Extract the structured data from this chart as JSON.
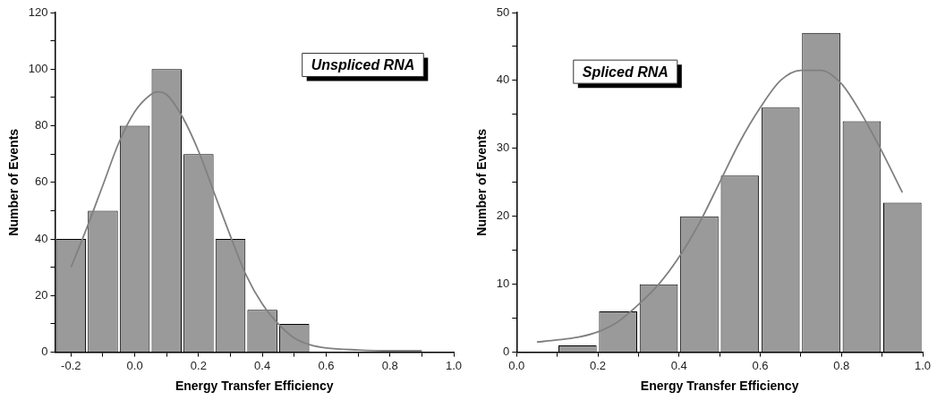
{
  "chart_data": [
    {
      "type": "histogram",
      "xlabel": "Energy Transfer Efficiency",
      "ylabel": "Number of Events",
      "annotations": [
        "Unspliced RNA"
      ],
      "bins": [
        -0.25,
        -0.15,
        -0.05,
        0.05,
        0.15,
        0.25,
        0.35,
        0.45,
        0.55
      ],
      "values": [
        40,
        50,
        80,
        100,
        70,
        40,
        15,
        10
      ],
      "color": "#9a9a9a",
      "series": [
        {
          "type": "line",
          "color": "#808080",
          "x": [
            -0.2,
            -0.15,
            -0.1,
            -0.05,
            0,
            0.05,
            0.07,
            0.1,
            0.15,
            0.2,
            0.25,
            0.3,
            0.35,
            0.4,
            0.45,
            0.5,
            0.55,
            0.6,
            0.7,
            0.8,
            0.9
          ],
          "values": [
            30,
            44,
            59,
            74,
            85,
            91,
            92,
            91,
            83,
            71,
            56,
            41,
            27,
            17,
            10,
            5,
            2.6,
            1.5,
            0.8,
            0.5,
            0.5
          ]
        }
      ],
      "xlim": [
        -0.25,
        1.0
      ],
      "xticks": [
        -0.2,
        {
          "value": -0.1,
          "label": null
        },
        {
          "value": 0,
          "label": "0.0"
        },
        {
          "value": 0.1,
          "label": null
        },
        0.2,
        {
          "value": 0.3,
          "label": null
        },
        0.4,
        {
          "value": 0.5,
          "label": null
        },
        0.6,
        {
          "value": 0.7,
          "label": null
        },
        0.8,
        {
          "value": 0.9,
          "label": null
        },
        {
          "value": 1.0,
          "label": "1.0"
        }
      ],
      "ylim": [
        0,
        120
      ],
      "yticks": [
        0,
        {
          "value": 10,
          "label": null
        },
        20,
        {
          "value": 30,
          "label": null
        },
        40,
        {
          "value": 50,
          "label": null
        },
        60,
        {
          "value": 70,
          "label": null
        },
        80,
        {
          "value": 90,
          "label": null
        },
        100,
        {
          "value": 110,
          "label": null
        },
        120
      ]
    },
    {
      "type": "histogram",
      "xlabel": "Energy Transfer Efficiency",
      "ylabel": "Number of Events",
      "annotations": [
        "Spliced RNA"
      ],
      "bins": [
        0.1,
        0.2,
        0.3,
        0.4,
        0.5,
        0.6,
        0.7,
        0.8,
        0.9,
        1.0
      ],
      "values": [
        1,
        6,
        10,
        20,
        26,
        36,
        47,
        34,
        22
      ],
      "color": "#9a9a9a",
      "series": [
        {
          "type": "line",
          "color": "#808080",
          "x": [
            0.05,
            0.1,
            0.15,
            0.2,
            0.25,
            0.3,
            0.35,
            0.4,
            0.45,
            0.5,
            0.55,
            0.6,
            0.65,
            0.7,
            0.75,
            0.8,
            0.85,
            0.9,
            0.95
          ],
          "values": [
            1.5,
            1.8,
            2.2,
            3,
            4.5,
            7,
            10,
            14,
            19,
            25,
            31,
            36,
            40,
            41.5,
            41.5,
            39.5,
            35,
            29.5,
            23.5
          ]
        }
      ],
      "xlim": [
        0,
        1.0
      ],
      "xticks": [
        {
          "value": 0,
          "label": "0.0"
        },
        {
          "value": 0.1,
          "label": null
        },
        0.2,
        {
          "value": 0.3,
          "label": null
        },
        0.4,
        {
          "value": 0.5,
          "label": null
        },
        0.6,
        {
          "value": 0.7,
          "label": null
        },
        0.8,
        {
          "value": 0.9,
          "label": null
        },
        {
          "value": 1.0,
          "label": "1.0"
        }
      ],
      "ylim": [
        0,
        50
      ],
      "yticks": [
        0,
        {
          "value": 5,
          "label": null
        },
        10,
        {
          "value": 15,
          "label": null
        },
        20,
        {
          "value": 25,
          "label": null
        },
        30,
        {
          "value": 35,
          "label": null
        },
        40,
        {
          "value": 45,
          "label": null
        },
        50
      ]
    }
  ]
}
